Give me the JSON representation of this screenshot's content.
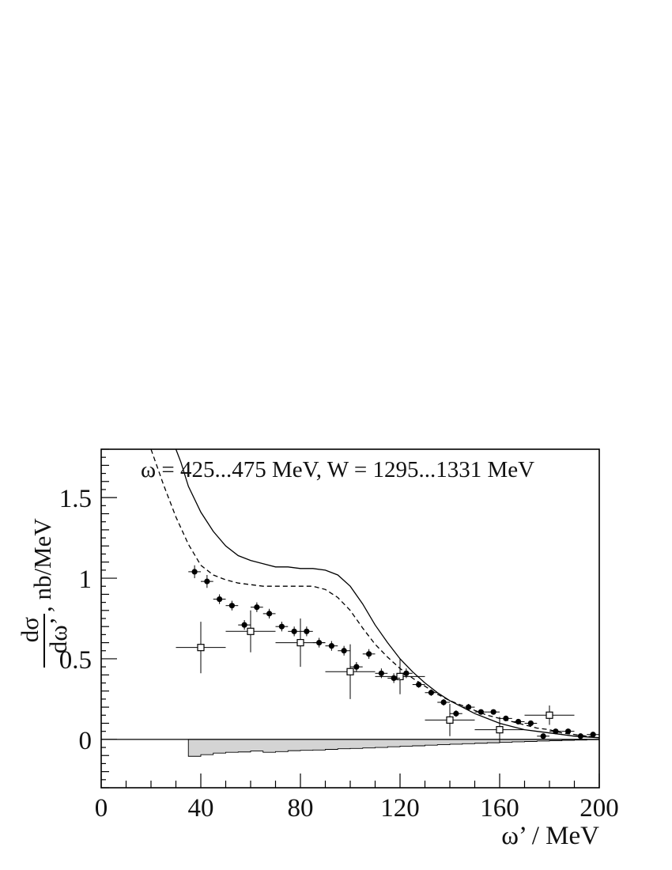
{
  "chart_data": {
    "type": "scatter",
    "annotation": "ω = 425...475 MeV, W = 1295...1331 MeV",
    "xlabel": "ω’ / MeV",
    "ylabel_num": "dσ",
    "ylabel_den": "dω’",
    "ylabel_unit": ", nb/MeV",
    "xlim": [
      0,
      200
    ],
    "ylim": [
      -0.3,
      1.8
    ],
    "xticks": [
      0,
      40,
      80,
      120,
      160,
      200
    ],
    "yticks": [
      0,
      0.5,
      1,
      1.5
    ],
    "xtick_labels": [
      "0",
      "40",
      "80",
      "120",
      "160",
      "200"
    ],
    "ytick_labels": [
      "0",
      "0.5",
      "1",
      "1.5"
    ],
    "grid": false,
    "series": [
      {
        "style": "filled-circle",
        "x": [
          37.5,
          42.5,
          47.5,
          52.5,
          57.5,
          62.5,
          67.5,
          72.5,
          77.5,
          82.5,
          87.5,
          92.5,
          97.5,
          102.5,
          107.5,
          112.5,
          117.5,
          122.5,
          127.5,
          132.5,
          137.5,
          142.5,
          147.5,
          152.5,
          157.5,
          162.5,
          167.5,
          172.5,
          177.5,
          182.5,
          187.5,
          192.5,
          197.5
        ],
        "y": [
          1.04,
          0.98,
          0.87,
          0.83,
          0.71,
          0.82,
          0.78,
          0.7,
          0.67,
          0.67,
          0.6,
          0.58,
          0.55,
          0.45,
          0.53,
          0.41,
          0.38,
          0.41,
          0.34,
          0.29,
          0.23,
          0.16,
          0.2,
          0.17,
          0.17,
          0.13,
          0.11,
          0.1,
          0.02,
          0.05,
          0.05,
          0.02,
          0.03
        ],
        "yerr": [
          0.04,
          0.04,
          0.03,
          0.03,
          0.03,
          0.03,
          0.03,
          0.03,
          0.03,
          0.03,
          0.03,
          0.03,
          0.03,
          0.03,
          0.03,
          0.03,
          0.03,
          0.03,
          0.02,
          0.02,
          0.02,
          0.02,
          0.02,
          0.01,
          0.01,
          0.01,
          0.01,
          0.01,
          0.01,
          0.01,
          0.01,
          0.01,
          0.01
        ],
        "xerr": 2.5
      },
      {
        "style": "open-square",
        "x": [
          40,
          60,
          80,
          100,
          120,
          140,
          160,
          180
        ],
        "y": [
          0.57,
          0.67,
          0.6,
          0.42,
          0.39,
          0.12,
          0.06,
          0.15
        ],
        "yerr": [
          0.16,
          0.13,
          0.15,
          0.17,
          0.11,
          0.1,
          0.08,
          0.06
        ],
        "xerr": 10
      },
      {
        "style": "solid-line",
        "x": [
          30,
          32,
          35,
          40,
          45,
          50,
          55,
          60,
          65,
          70,
          75,
          80,
          85,
          90,
          95,
          100,
          105,
          110,
          115,
          120,
          125,
          130,
          135,
          140,
          145,
          150,
          155,
          160,
          165,
          170,
          175,
          180,
          185,
          190,
          195,
          200
        ],
        "y": [
          1.82,
          1.72,
          1.57,
          1.41,
          1.29,
          1.2,
          1.14,
          1.11,
          1.09,
          1.07,
          1.07,
          1.06,
          1.06,
          1.05,
          1.02,
          0.95,
          0.84,
          0.71,
          0.6,
          0.5,
          0.42,
          0.35,
          0.29,
          0.24,
          0.2,
          0.16,
          0.13,
          0.1,
          0.08,
          0.06,
          0.05,
          0.04,
          0.03,
          0.02,
          0.015,
          0.01
        ]
      },
      {
        "style": "dashed-line",
        "x": [
          20,
          25,
          30,
          35,
          40,
          45,
          50,
          55,
          60,
          65,
          70,
          75,
          80,
          85,
          90,
          95,
          100,
          105,
          110,
          115,
          120,
          125,
          130,
          135,
          140,
          145,
          150,
          155,
          160,
          165,
          170,
          175,
          180,
          185,
          190,
          195,
          200
        ],
        "y": [
          1.8,
          1.58,
          1.38,
          1.21,
          1.08,
          1.02,
          0.99,
          0.97,
          0.96,
          0.95,
          0.95,
          0.95,
          0.95,
          0.95,
          0.93,
          0.88,
          0.8,
          0.69,
          0.59,
          0.51,
          0.44,
          0.38,
          0.33,
          0.28,
          0.24,
          0.21,
          0.18,
          0.15,
          0.13,
          0.11,
          0.09,
          0.07,
          0.06,
          0.04,
          0.03,
          0.02,
          0.01
        ]
      },
      {
        "style": "shaded-histogram",
        "x": [
          35,
          40,
          45,
          50,
          55,
          60,
          65,
          70,
          75,
          80,
          85,
          90,
          95,
          100,
          105,
          110,
          115,
          120,
          125,
          130,
          135,
          140,
          145,
          150,
          155,
          160,
          165,
          170,
          175,
          180,
          185,
          190,
          195
        ],
        "y": [
          -0.105,
          -0.095,
          -0.085,
          -0.08,
          -0.078,
          -0.072,
          -0.08,
          -0.076,
          -0.07,
          -0.068,
          -0.066,
          -0.062,
          -0.058,
          -0.056,
          -0.053,
          -0.05,
          -0.046,
          -0.042,
          -0.04,
          -0.036,
          -0.033,
          -0.03,
          -0.027,
          -0.024,
          -0.021,
          -0.018,
          -0.015,
          -0.013,
          -0.01,
          -0.008,
          -0.006,
          -0.004,
          -0.002
        ]
      }
    ]
  }
}
